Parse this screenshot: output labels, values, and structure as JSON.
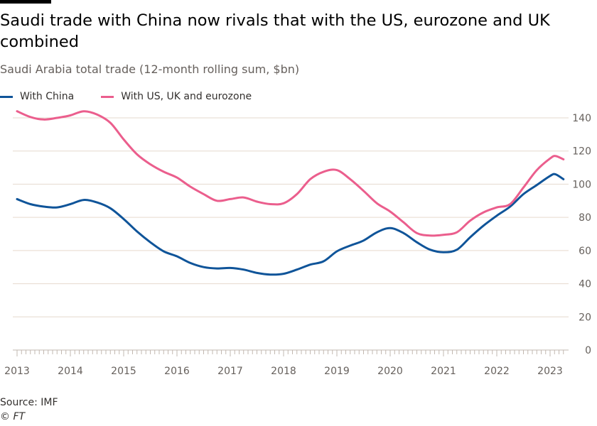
{
  "header": {
    "title": "Saudi trade with China now rivals that with the US, eurozone and UK combined",
    "subtitle": "Saudi Arabia total trade (12-month rolling sum, $bn)"
  },
  "legend": [
    {
      "label": "With China",
      "color": "#0f5499"
    },
    {
      "label": "With US, UK and eurozone",
      "color": "#eb5e8d"
    }
  ],
  "footer": {
    "source": "Source: IMF",
    "copyright": "© FT"
  },
  "colors": {
    "gridline": "#e6d9ce",
    "axis": "#c2b8b0",
    "china": "#0f5499",
    "west": "#eb5e8d"
  },
  "chart_data": {
    "type": "line",
    "title": "Saudi trade with China now rivals that with the US, eurozone and UK combined",
    "subtitle": "Saudi Arabia total trade (12-month rolling sum, $bn)",
    "xlabel": "",
    "ylabel": "$bn",
    "xlim": [
      2013.0,
      2023.25
    ],
    "ylim": [
      0,
      140
    ],
    "yticks": [
      0,
      20,
      40,
      60,
      80,
      100,
      120,
      140
    ],
    "xticks": [
      "2013",
      "2014",
      "2015",
      "2016",
      "2017",
      "2018",
      "2019",
      "2020",
      "2021",
      "2022",
      "2023"
    ],
    "grid": true,
    "legend_position": "top-left",
    "y_axis_side": "right",
    "x": [
      2013.0,
      2013.25,
      2013.5,
      2013.75,
      2014.0,
      2014.25,
      2014.5,
      2014.75,
      2015.0,
      2015.25,
      2015.5,
      2015.75,
      2016.0,
      2016.25,
      2016.5,
      2016.75,
      2017.0,
      2017.25,
      2017.5,
      2017.75,
      2018.0,
      2018.25,
      2018.5,
      2018.75,
      2019.0,
      2019.25,
      2019.5,
      2019.75,
      2020.0,
      2020.25,
      2020.5,
      2020.75,
      2021.0,
      2021.25,
      2021.5,
      2021.75,
      2022.0,
      2022.25,
      2022.5,
      2022.75,
      2023.0,
      2023.1,
      2023.25
    ],
    "series": [
      {
        "name": "With China",
        "color": "#0f5499",
        "values": [
          91,
          88,
          86.5,
          86,
          88,
          90.5,
          89,
          85.5,
          79,
          71.5,
          65,
          59.5,
          56.5,
          52.5,
          50,
          49.2,
          49.5,
          48.5,
          46.5,
          45.5,
          46,
          48.5,
          51.5,
          53.5,
          59.5,
          63,
          66,
          71,
          73.5,
          70.5,
          65,
          60.5,
          59,
          60.5,
          68,
          75,
          81,
          86.5,
          94,
          99.5,
          105,
          106,
          103
        ]
      },
      {
        "name": "With US, UK and eurozone",
        "color": "#eb5e8d",
        "values": [
          144,
          140.5,
          139,
          140,
          141.5,
          144,
          142,
          137,
          127,
          118,
          112,
          107.5,
          104,
          98.5,
          94,
          90,
          91,
          92,
          89.5,
          88,
          88.5,
          94,
          103,
          107.5,
          108.5,
          103,
          96,
          88.5,
          83.5,
          77,
          70.5,
          69,
          69.5,
          71,
          78,
          83,
          86,
          88,
          98,
          108.5,
          115.5,
          117,
          115
        ]
      }
    ]
  }
}
